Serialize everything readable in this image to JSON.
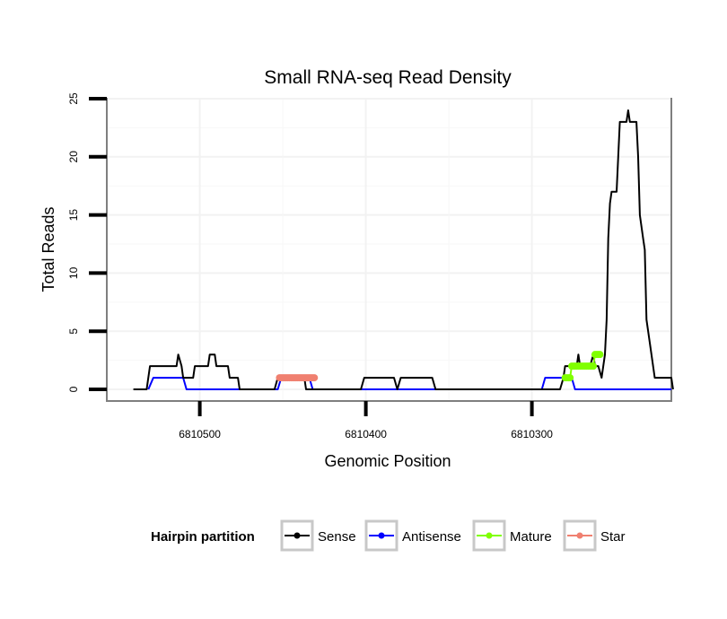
{
  "chart_data": {
    "type": "line",
    "title": "Small RNA-seq Read Density",
    "xlabel": "Genomic Position",
    "ylabel": "Total Reads",
    "xlim": [
      6810556,
      6810216
    ],
    "ylim": [
      -1,
      25
    ],
    "xticks": [
      6810500,
      6810400,
      6810300
    ],
    "xtick_labels": [
      "6810500",
      "6810400",
      "6810300"
    ],
    "yticks": [
      0,
      5,
      10,
      15,
      20,
      25
    ],
    "ytick_labels": [
      "0",
      "5",
      "10",
      "15",
      "20",
      "25"
    ],
    "grid": true,
    "legend": {
      "title": "Hairpin partition",
      "position": "bottom",
      "items": [
        "Sense",
        "Antisense",
        "Mature",
        "Star"
      ]
    },
    "series": [
      {
        "name": "Sense",
        "color": "#000000",
        "style": "line",
        "points": [
          [
            6810540,
            0
          ],
          [
            6810532,
            0
          ],
          [
            6810530,
            2
          ],
          [
            6810514,
            2
          ],
          [
            6810513,
            3
          ],
          [
            6810511,
            2
          ],
          [
            6810510,
            1
          ],
          [
            6810504,
            1
          ],
          [
            6810503,
            2
          ],
          [
            6810495,
            2
          ],
          [
            6810494,
            3
          ],
          [
            6810491,
            3
          ],
          [
            6810490,
            2
          ],
          [
            6810483,
            2
          ],
          [
            6810482,
            1
          ],
          [
            6810477,
            1
          ],
          [
            6810476,
            0
          ],
          [
            6810455,
            0
          ],
          [
            6810453,
            1
          ],
          [
            6810437,
            1
          ],
          [
            6810436,
            0
          ],
          [
            6810403,
            0
          ],
          [
            6810401,
            1
          ],
          [
            6810383,
            1
          ],
          [
            6810381,
            0
          ],
          [
            6810379,
            1
          ],
          [
            6810360,
            1
          ],
          [
            6810358,
            0
          ],
          [
            6810283,
            0
          ],
          [
            6810281,
            1
          ],
          [
            6810280,
            2
          ],
          [
            6810273,
            2
          ],
          [
            6810272,
            3
          ],
          [
            6810271,
            2
          ],
          [
            6810265,
            2
          ],
          [
            6810263,
            3
          ],
          [
            6810262,
            2
          ],
          [
            6810260,
            2
          ],
          [
            6810258,
            1
          ],
          [
            6810256,
            3
          ],
          [
            6810255,
            6
          ],
          [
            6810254,
            13
          ],
          [
            6810253,
            16
          ],
          [
            6810252,
            17
          ],
          [
            6810249,
            17
          ],
          [
            6810248,
            20
          ],
          [
            6810247,
            23
          ],
          [
            6810243,
            23
          ],
          [
            6810242,
            24
          ],
          [
            6810241,
            23
          ],
          [
            6810237,
            23
          ],
          [
            6810236,
            20
          ],
          [
            6810235,
            15
          ],
          [
            6810233,
            13
          ],
          [
            6810232,
            12
          ],
          [
            6810231,
            6
          ],
          [
            6810229,
            4
          ],
          [
            6810226,
            1
          ],
          [
            6810216,
            1
          ],
          [
            6810215,
            0
          ]
        ]
      },
      {
        "name": "Antisense",
        "color": "#0000ff",
        "style": "line",
        "points": [
          [
            6810531,
            0
          ],
          [
            6810528,
            1
          ],
          [
            6810510,
            1
          ],
          [
            6810508,
            0
          ],
          [
            6810476,
            0
          ],
          [
            6810453,
            0
          ],
          [
            6810451,
            1
          ],
          [
            6810434,
            1
          ],
          [
            6810432,
            0
          ],
          [
            6810294,
            0
          ],
          [
            6810292,
            1
          ],
          [
            6810276,
            1
          ],
          [
            6810274,
            0
          ],
          [
            6810216,
            0
          ]
        ]
      },
      {
        "name": "Mature",
        "color": "#80ff00",
        "style": "dots",
        "points": [
          [
            6810280,
            1
          ],
          [
            6810279,
            1
          ],
          [
            6810278,
            1
          ],
          [
            6810277,
            1
          ],
          [
            6810276,
            2
          ],
          [
            6810275,
            2
          ],
          [
            6810274,
            2
          ],
          [
            6810273,
            2
          ],
          [
            6810272,
            2
          ],
          [
            6810271,
            2
          ],
          [
            6810270,
            2
          ],
          [
            6810269,
            2
          ],
          [
            6810268,
            2
          ],
          [
            6810267,
            2
          ],
          [
            6810266,
            2
          ],
          [
            6810265,
            2
          ],
          [
            6810264,
            2
          ],
          [
            6810263,
            2
          ],
          [
            6810262,
            3
          ],
          [
            6810261,
            3
          ],
          [
            6810260,
            3
          ],
          [
            6810259,
            3
          ]
        ]
      },
      {
        "name": "Star",
        "color": "#f08070",
        "style": "dots",
        "points": [
          [
            6810452,
            1
          ],
          [
            6810451,
            1
          ],
          [
            6810450,
            1
          ],
          [
            6810449,
            1
          ],
          [
            6810448,
            1
          ],
          [
            6810447,
            1
          ],
          [
            6810446,
            1
          ],
          [
            6810445,
            1
          ],
          [
            6810444,
            1
          ],
          [
            6810443,
            1
          ],
          [
            6810442,
            1
          ],
          [
            6810441,
            1
          ],
          [
            6810440,
            1
          ],
          [
            6810439,
            1
          ],
          [
            6810438,
            1
          ],
          [
            6810437,
            1
          ],
          [
            6810436,
            1
          ],
          [
            6810435,
            1
          ],
          [
            6810434,
            1
          ],
          [
            6810433,
            1
          ],
          [
            6810432,
            1
          ],
          [
            6810431,
            1
          ]
        ]
      }
    ]
  }
}
